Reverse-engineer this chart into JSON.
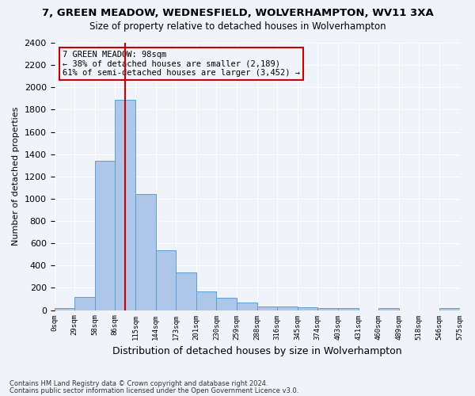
{
  "title": "7, GREEN MEADOW, WEDNESFIELD, WOLVERHAMPTON, WV11 3XA",
  "subtitle": "Size of property relative to detached houses in Wolverhampton",
  "xlabel": "Distribution of detached houses by size in Wolverhampton",
  "ylabel": "Number of detached properties",
  "footnote1": "Contains HM Land Registry data © Crown copyright and database right 2024.",
  "footnote2": "Contains public sector information licensed under the Open Government Licence v3.0.",
  "annotation_line1": "7 GREEN MEADOW: 98sqm",
  "annotation_line2": "← 38% of detached houses are smaller (2,189)",
  "annotation_line3": "61% of semi-detached houses are larger (3,452) →",
  "bar_values": [
    15,
    120,
    1340,
    1890,
    1040,
    540,
    335,
    165,
    110,
    65,
    35,
    30,
    25,
    20,
    20,
    0,
    20,
    0,
    0,
    20
  ],
  "bin_labels": [
    "0sqm",
    "29sqm",
    "58sqm",
    "86sqm",
    "115sqm",
    "144sqm",
    "173sqm",
    "201sqm",
    "230sqm",
    "259sqm",
    "288sqm",
    "316sqm",
    "345sqm",
    "374sqm",
    "403sqm",
    "431sqm",
    "460sqm",
    "489sqm",
    "518sqm",
    "546sqm",
    "575sqm"
  ],
  "bar_color": "#aec6e8",
  "bar_edge_color": "#5a9fd4",
  "vline_x": 3,
  "vline_color": "#cc0000",
  "ylim": [
    0,
    2400
  ],
  "yticks": [
    0,
    200,
    400,
    600,
    800,
    1000,
    1200,
    1400,
    1600,
    1800,
    2000,
    2200,
    2400
  ],
  "annotation_box_color": "#cc0000",
  "background_color": "#f0f4fa",
  "grid_color": "#ffffff"
}
